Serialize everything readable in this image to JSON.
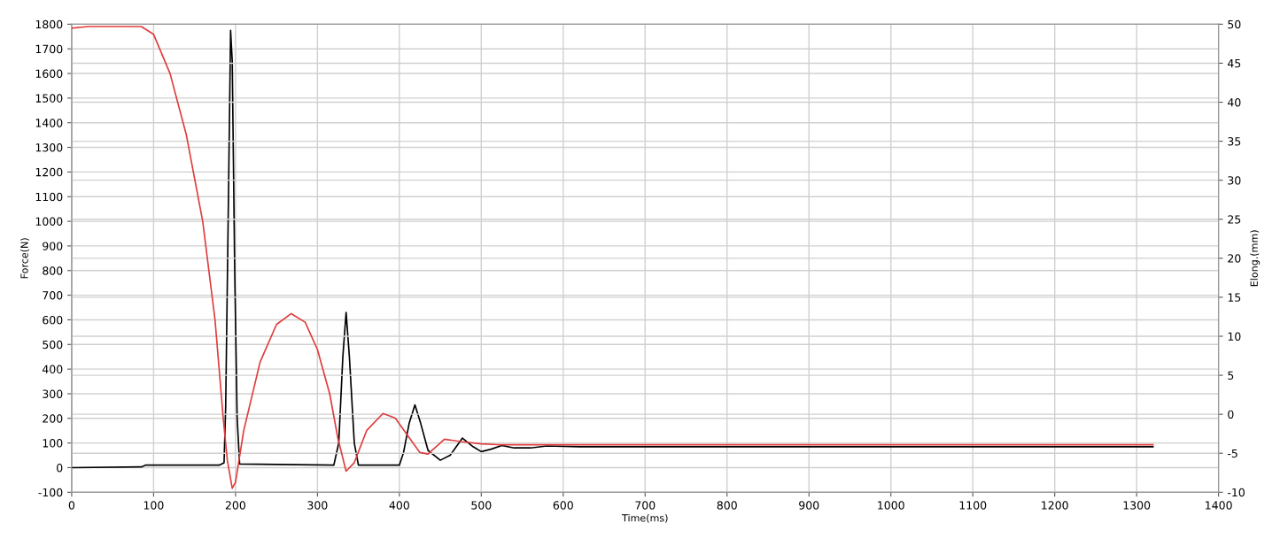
{
  "chart_data": {
    "type": "line",
    "xlabel": "Time(ms)",
    "ylabel": "Force(N)",
    "y2label": "Elong.(mm)",
    "xlim": [
      0,
      1400
    ],
    "xticks": [
      0,
      100,
      200,
      300,
      400,
      500,
      600,
      700,
      800,
      900,
      1000,
      1100,
      1200,
      1300,
      1400
    ],
    "ylim": [
      -100,
      1800
    ],
    "yticks": [
      -100,
      0,
      100,
      200,
      300,
      400,
      500,
      600,
      700,
      800,
      900,
      1000,
      1100,
      1200,
      1300,
      1400,
      1500,
      1600,
      1700,
      1800
    ],
    "y2lim": [
      -10,
      50
    ],
    "y2ticks": [
      -10,
      -5,
      0,
      5,
      10,
      15,
      20,
      25,
      30,
      35,
      40,
      45,
      50
    ],
    "grid": true,
    "legend": false,
    "line_style": "solid",
    "marker": "none",
    "series": [
      {
        "color": "#000000",
        "x": [
          0,
          85,
          90,
          180,
          186,
          188,
          191,
          194,
          196,
          199,
          202,
          205,
          320,
          326,
          331,
          335,
          339,
          345,
          350,
          400,
          405,
          412,
          419,
          426,
          435,
          450,
          462,
          477,
          490,
          500,
          512,
          525,
          540,
          560,
          580,
          620,
          1320
        ],
        "values": [
          0,
          3,
          10,
          10,
          20,
          250,
          1000,
          1775,
          1650,
          800,
          200,
          15,
          10,
          100,
          450,
          630,
          450,
          100,
          10,
          10,
          60,
          180,
          255,
          180,
          70,
          30,
          50,
          120,
          85,
          65,
          75,
          90,
          80,
          80,
          88,
          85,
          85
        ]
      },
      {
        "color": "#e03c3c",
        "axis": "y2",
        "x": [
          0,
          20,
          85,
          100,
          120,
          140,
          160,
          175,
          185,
          190,
          196,
          200,
          210,
          230,
          250,
          268,
          285,
          300,
          315,
          325,
          335,
          345,
          360,
          380,
          395,
          410,
          425,
          435,
          455,
          475,
          500,
          520,
          600,
          1320
        ],
        "values": [
          49.5,
          49.7,
          49.7,
          48.7,
          43.7,
          35.8,
          24.7,
          12.1,
          -0.5,
          -5.9,
          -9.5,
          -8.7,
          -2.1,
          6.7,
          11.5,
          12.9,
          11.8,
          8.3,
          2.6,
          -3.1,
          -7.3,
          -6.2,
          -2.1,
          0.1,
          -0.5,
          -2.7,
          -4.9,
          -5.1,
          -3.2,
          -3.5,
          -3.8,
          -3.9,
          -3.9,
          -3.9
        ]
      }
    ]
  }
}
